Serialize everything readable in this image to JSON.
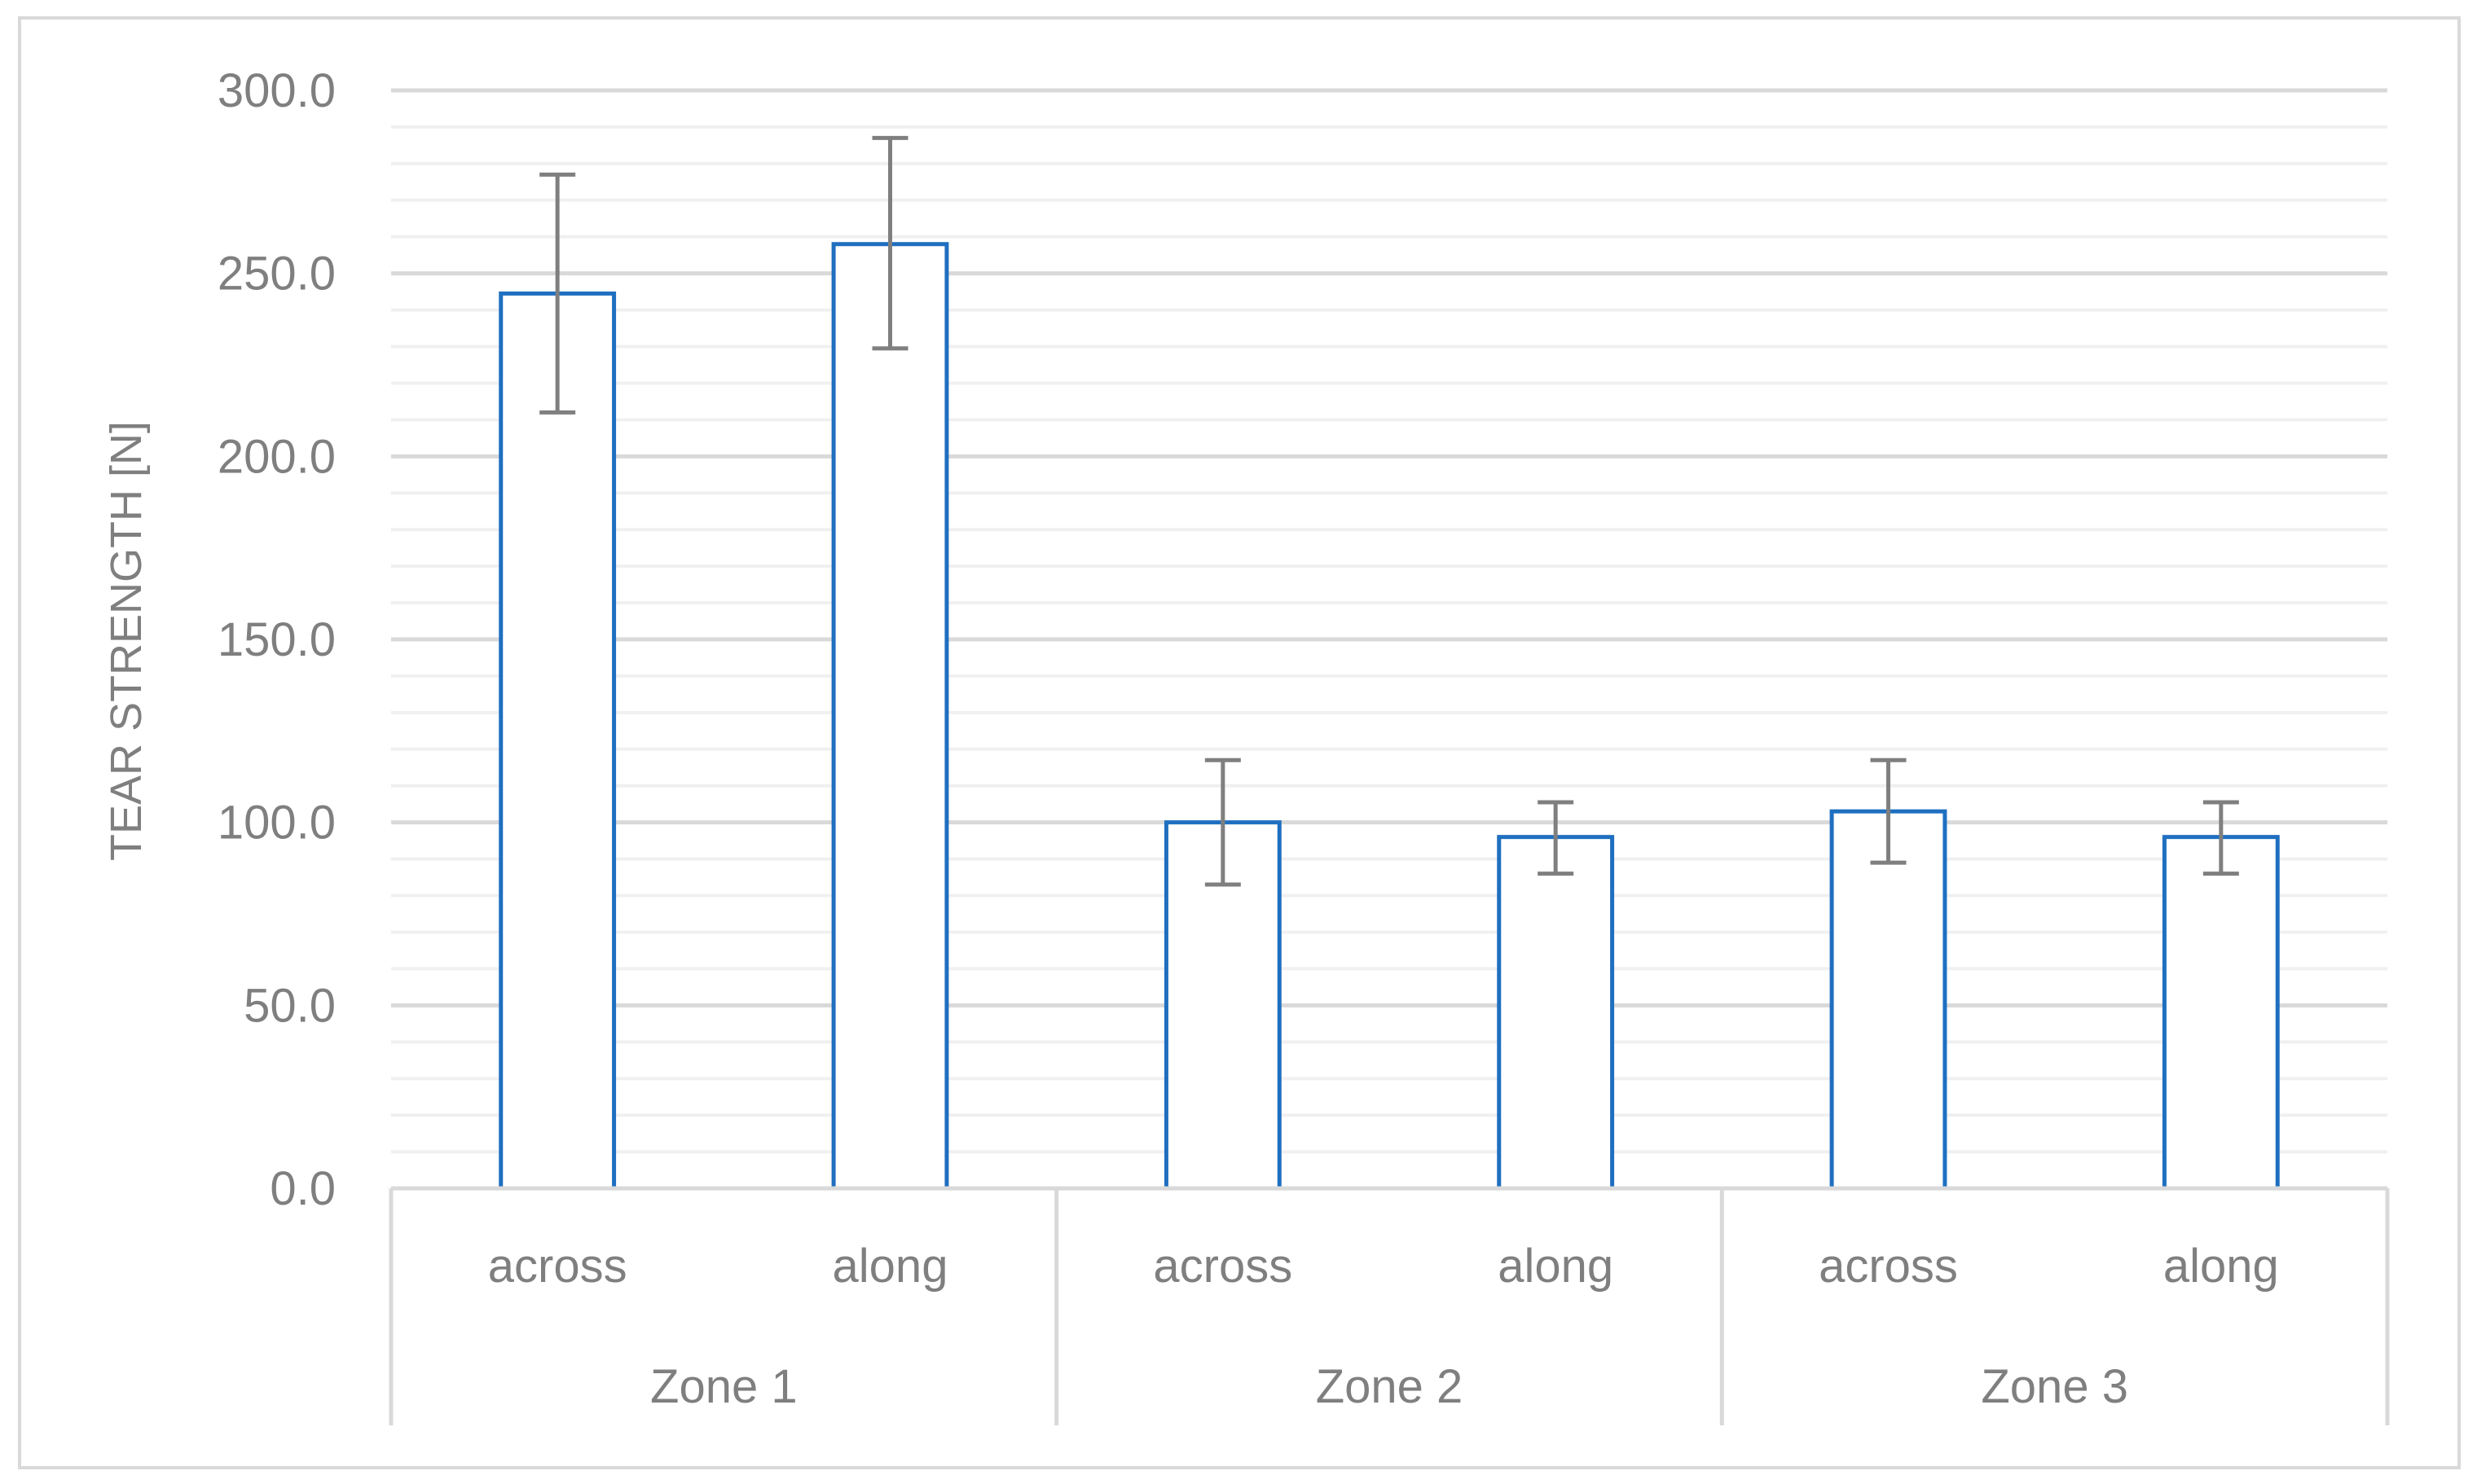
{
  "chart_data": {
    "type": "bar",
    "title": "",
    "xlabel": "",
    "ylabel": "TEAR STRENGTH [N]",
    "ylim": [
      0,
      300
    ],
    "y_major_step": 50,
    "y_minor_step": 10,
    "y_tick_format_decimals": 1,
    "grid": true,
    "legend": "none",
    "groups": [
      {
        "name": "Zone 1",
        "categories": [
          "across",
          "along"
        ]
      },
      {
        "name": "Zone 2",
        "categories": [
          "across",
          "along"
        ]
      },
      {
        "name": "Zone 3",
        "categories": [
          "across",
          "along"
        ]
      }
    ],
    "categories": [
      "across",
      "along",
      "across",
      "along",
      "across",
      "along"
    ],
    "values": [
      244.5,
      258,
      100,
      96,
      103,
      96
    ],
    "error_bars": [
      {
        "low": 212,
        "high": 277
      },
      {
        "low": 229.5,
        "high": 287
      },
      {
        "low": 83,
        "high": 117
      },
      {
        "low": 86,
        "high": 105.5
      },
      {
        "low": 89,
        "high": 117
      },
      {
        "low": 86,
        "high": 105.5
      }
    ],
    "colors": {
      "bar_edge": "#1f6fc0",
      "bar_fill": "#ffffff",
      "error_bar": "#7f7f7f",
      "major_grid": "#d9d9d9",
      "minor_grid": "#f0f0f0",
      "text": "#7f7f7f",
      "frame": "#d9d9d9"
    }
  }
}
